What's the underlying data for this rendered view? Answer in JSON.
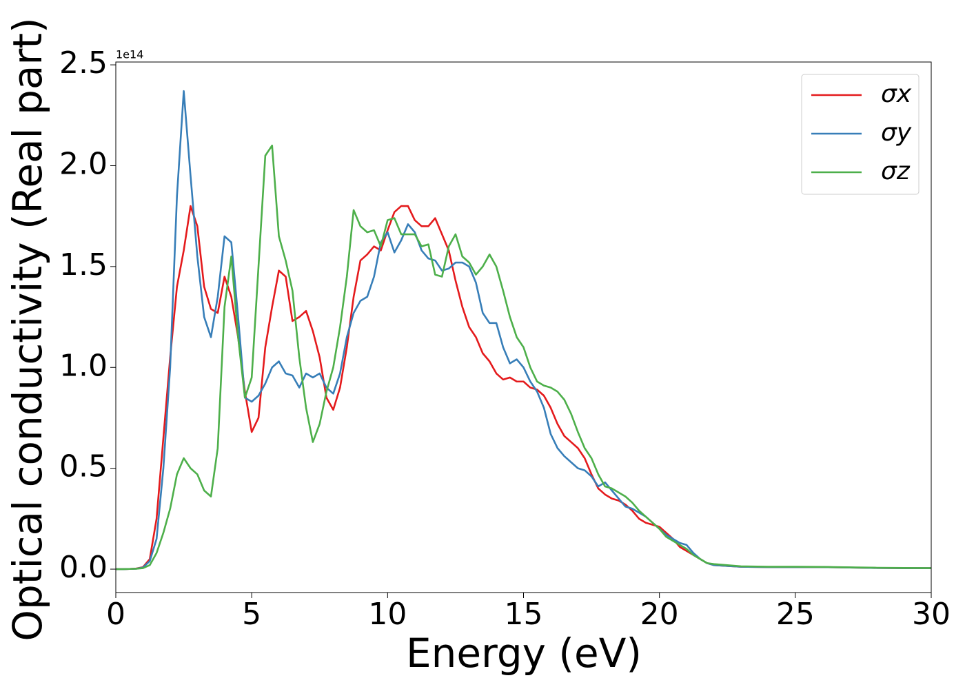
{
  "chart_data": {
    "type": "line",
    "xlabel": "Energy (eV)",
    "ylabel": "Optical conductivity (Real part)",
    "y_offset_text": "1e14",
    "xlim": [
      0,
      30
    ],
    "ylim": [
      -0.116,
      2.514
    ],
    "xticks": [
      0,
      5,
      10,
      15,
      20,
      25,
      30
    ],
    "yticks": [
      {
        "value": 0,
        "label": "0.0"
      },
      0.5,
      {
        "value": 1,
        "label": "1.0"
      },
      1.5,
      {
        "value": 2,
        "label": "2.0"
      },
      2.5
    ],
    "legend": "upper right",
    "x": [
      0,
      0.25,
      0.5,
      0.75,
      1,
      1.25,
      1.5,
      1.75,
      2,
      2.25,
      2.5,
      2.75,
      3,
      3.25,
      3.5,
      3.75,
      4,
      4.25,
      4.5,
      4.75,
      5,
      5.25,
      5.5,
      5.75,
      6,
      6.25,
      6.5,
      6.75,
      7,
      7.25,
      7.5,
      7.75,
      8,
      8.25,
      8.5,
      8.75,
      9,
      9.25,
      9.5,
      9.75,
      10,
      10.25,
      10.5,
      10.75,
      11,
      11.25,
      11.5,
      11.75,
      12,
      12.25,
      12.5,
      12.75,
      13,
      13.25,
      13.5,
      13.75,
      14,
      14.25,
      14.5,
      14.75,
      15,
      15.25,
      15.5,
      15.75,
      16,
      16.25,
      16.5,
      16.75,
      17,
      17.25,
      17.5,
      17.75,
      18,
      18.25,
      18.5,
      18.75,
      19,
      19.25,
      19.5,
      19.75,
      20,
      20.25,
      20.5,
      20.75,
      21,
      21.25,
      21.5,
      21.75,
      22,
      23,
      24,
      25,
      26,
      27,
      28,
      29,
      30
    ],
    "series": [
      {
        "name": "σx",
        "color": "#e41a1c",
        "values": [
          0,
          0,
          0.001,
          0.003,
          0.01,
          0.05,
          0.25,
          0.65,
          1.05,
          1.4,
          1.58,
          1.8,
          1.7,
          1.4,
          1.29,
          1.27,
          1.45,
          1.35,
          1.15,
          0.88,
          0.68,
          0.75,
          1.1,
          1.3,
          1.48,
          1.45,
          1.23,
          1.25,
          1.28,
          1.18,
          1.05,
          0.85,
          0.79,
          0.9,
          1.1,
          1.35,
          1.53,
          1.56,
          1.6,
          1.58,
          1.68,
          1.77,
          1.8,
          1.8,
          1.73,
          1.7,
          1.7,
          1.74,
          1.66,
          1.58,
          1.43,
          1.3,
          1.2,
          1.15,
          1.07,
          1.03,
          0.97,
          0.94,
          0.95,
          0.93,
          0.93,
          0.9,
          0.89,
          0.86,
          0.8,
          0.72,
          0.66,
          0.63,
          0.6,
          0.55,
          0.47,
          0.4,
          0.37,
          0.35,
          0.34,
          0.32,
          0.29,
          0.25,
          0.23,
          0.22,
          0.21,
          0.18,
          0.15,
          0.11,
          0.09,
          0.07,
          0.05,
          0.03,
          0.02,
          0.012,
          0.01,
          0.01,
          0.01,
          0.008,
          0.006,
          0.005,
          0.005
        ]
      },
      {
        "name": "σy",
        "color": "#377eb8",
        "values": [
          0,
          0,
          0.001,
          0.002,
          0.008,
          0.04,
          0.15,
          0.5,
          1.0,
          1.85,
          2.37,
          1.95,
          1.55,
          1.25,
          1.15,
          1.35,
          1.65,
          1.62,
          1.25,
          0.85,
          0.83,
          0.86,
          0.92,
          1.0,
          1.03,
          0.97,
          0.96,
          0.9,
          0.97,
          0.95,
          0.97,
          0.9,
          0.87,
          0.97,
          1.15,
          1.27,
          1.33,
          1.35,
          1.45,
          1.62,
          1.67,
          1.57,
          1.63,
          1.71,
          1.67,
          1.58,
          1.54,
          1.53,
          1.48,
          1.49,
          1.52,
          1.52,
          1.5,
          1.42,
          1.27,
          1.22,
          1.22,
          1.1,
          1.02,
          1.04,
          1.0,
          0.93,
          0.88,
          0.8,
          0.67,
          0.6,
          0.56,
          0.53,
          0.5,
          0.49,
          0.46,
          0.41,
          0.43,
          0.39,
          0.35,
          0.31,
          0.3,
          0.28,
          0.26,
          0.23,
          0.2,
          0.17,
          0.15,
          0.13,
          0.12,
          0.08,
          0.05,
          0.03,
          0.02,
          0.012,
          0.01,
          0.01,
          0.01,
          0.008,
          0.006,
          0.005,
          0.005
        ]
      },
      {
        "name": "σz",
        "color": "#4daf4a",
        "values": [
          0,
          0,
          0.001,
          0.002,
          0.005,
          0.02,
          0.08,
          0.18,
          0.3,
          0.47,
          0.55,
          0.5,
          0.47,
          0.39,
          0.36,
          0.6,
          1.3,
          1.55,
          1.15,
          0.85,
          0.95,
          1.5,
          2.05,
          2.1,
          1.65,
          1.53,
          1.38,
          1.05,
          0.8,
          0.63,
          0.72,
          0.88,
          1.0,
          1.2,
          1.45,
          1.78,
          1.7,
          1.67,
          1.68,
          1.6,
          1.73,
          1.74,
          1.66,
          1.66,
          1.66,
          1.6,
          1.61,
          1.46,
          1.45,
          1.6,
          1.66,
          1.55,
          1.52,
          1.46,
          1.5,
          1.56,
          1.5,
          1.38,
          1.25,
          1.15,
          1.1,
          1.0,
          0.93,
          0.91,
          0.9,
          0.88,
          0.84,
          0.77,
          0.68,
          0.6,
          0.55,
          0.47,
          0.41,
          0.4,
          0.38,
          0.36,
          0.33,
          0.29,
          0.26,
          0.23,
          0.2,
          0.16,
          0.14,
          0.12,
          0.1,
          0.07,
          0.05,
          0.03,
          0.025,
          0.014,
          0.012,
          0.012,
          0.011,
          0.009,
          0.007,
          0.006,
          0.005
        ]
      }
    ]
  }
}
